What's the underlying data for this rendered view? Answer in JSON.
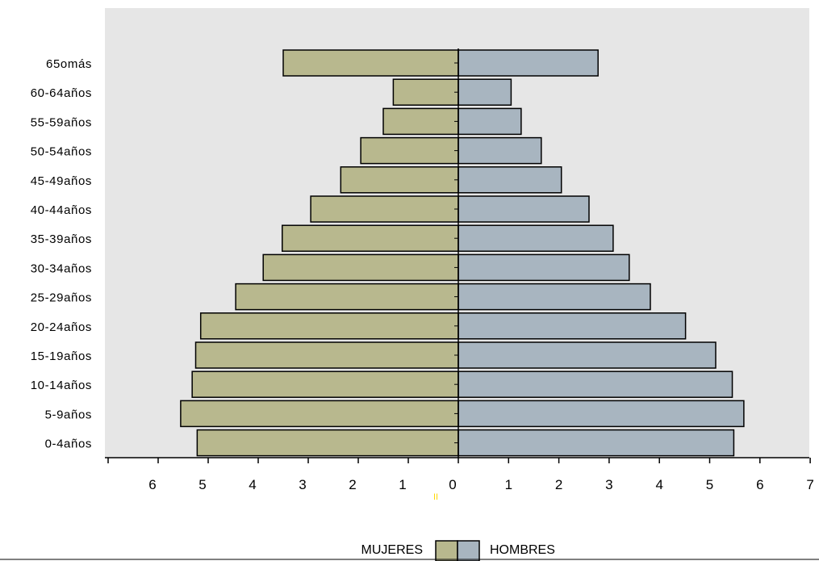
{
  "chart_data": {
    "type": "bar",
    "orientation": "horizontal",
    "layout": "population-pyramid",
    "categories": [
      "65omás",
      "60-64años",
      "55-59años",
      "50-54años",
      "45-49años",
      "40-44años",
      "35-39años",
      "30-34años",
      "25-29años",
      "20-24años",
      "15-19años",
      "10-14años",
      "5-9años",
      "0-4años"
    ],
    "series": [
      {
        "name": "MUJERES",
        "side": "left",
        "color": "#b8b88e",
        "values": [
          3.5,
          1.3,
          1.5,
          1.95,
          2.35,
          2.95,
          3.52,
          3.9,
          4.45,
          5.15,
          5.25,
          5.32,
          5.55,
          5.22
        ]
      },
      {
        "name": "HOMBRES",
        "side": "right",
        "color": "#a8b5c0",
        "values": [
          2.78,
          1.05,
          1.25,
          1.65,
          2.05,
          2.6,
          3.08,
          3.4,
          3.82,
          4.52,
          5.12,
          5.45,
          5.68,
          5.48
        ]
      }
    ],
    "x_ticks": [
      "6",
      "5",
      "4",
      "3",
      "2",
      "1",
      "0",
      "1",
      "2",
      "3",
      "4",
      "5",
      "6",
      "7"
    ],
    "xlim": [
      -7,
      7
    ],
    "center_mark": "II",
    "title": "",
    "xlabel": "",
    "ylabel": "",
    "grid": false,
    "legend_position": "bottom-center",
    "plot_background": "#e6e6e6"
  }
}
